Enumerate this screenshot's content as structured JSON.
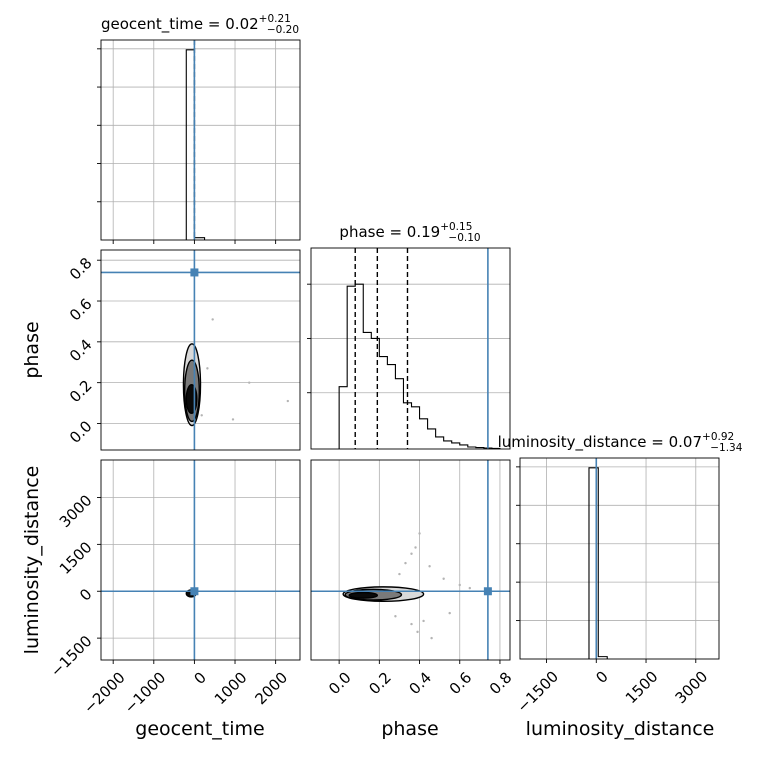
{
  "chart_data": {
    "type": "corner",
    "grid": true,
    "truth_color": "#4682b4",
    "truth": {
      "geocent_time": 0,
      "phase": 0.74,
      "luminosity_distance": 0
    },
    "panels": [
      {
        "id": "geocent_time_hist",
        "title": {
          "main": "geocent_time = 0.02",
          "sup": "+0.21",
          "sub": "−0.20"
        },
        "kind": "hist1d",
        "xlim": [
          -2300,
          2600
        ],
        "ylim": [
          0,
          1.02
        ],
        "xticks": [
          -2000,
          -1000,
          0,
          1000,
          2000
        ],
        "bins": [
          {
            "x0": -200,
            "x1": -20,
            "value": 0.97
          },
          {
            "x0": -20,
            "x1": 0,
            "value": 0.97
          },
          {
            "x0": 0,
            "x1": 250,
            "value": 0.012
          }
        ],
        "quantiles": [
          0.02
        ],
        "truth_x": 0
      },
      {
        "id": "phase_hist",
        "title": {
          "main": "phase = 0.19",
          "sup": "+0.15",
          "sub": "−0.10"
        },
        "kind": "hist1d",
        "xlim": [
          -0.14,
          0.85
        ],
        "ylim": [
          0,
          1.0
        ],
        "bins": [
          {
            "x0": 0.0,
            "x1": 0.04,
            "value": 0.31
          },
          {
            "x0": 0.04,
            "x1": 0.08,
            "value": 0.81
          },
          {
            "x0": 0.08,
            "x1": 0.12,
            "value": 0.82
          },
          {
            "x0": 0.12,
            "x1": 0.16,
            "value": 0.58
          },
          {
            "x0": 0.16,
            "x1": 0.2,
            "value": 0.55
          },
          {
            "x0": 0.2,
            "x1": 0.24,
            "value": 0.46
          },
          {
            "x0": 0.24,
            "x1": 0.28,
            "value": 0.42
          },
          {
            "x0": 0.28,
            "x1": 0.32,
            "value": 0.35
          },
          {
            "x0": 0.32,
            "x1": 0.36,
            "value": 0.23
          },
          {
            "x0": 0.36,
            "x1": 0.4,
            "value": 0.21
          },
          {
            "x0": 0.4,
            "x1": 0.44,
            "value": 0.15
          },
          {
            "x0": 0.44,
            "x1": 0.48,
            "value": 0.1
          },
          {
            "x0": 0.48,
            "x1": 0.52,
            "value": 0.06
          },
          {
            "x0": 0.52,
            "x1": 0.56,
            "value": 0.04
          },
          {
            "x0": 0.56,
            "x1": 0.6,
            "value": 0.03
          },
          {
            "x0": 0.6,
            "x1": 0.64,
            "value": 0.02
          },
          {
            "x0": 0.64,
            "x1": 0.68,
            "value": 0.01
          },
          {
            "x0": 0.68,
            "x1": 0.72,
            "value": 0.007
          },
          {
            "x0": 0.72,
            "x1": 0.76,
            "value": 0.005
          },
          {
            "x0": 0.76,
            "x1": 0.8,
            "value": 0.003
          }
        ],
        "quantiles": [
          0.08,
          0.19,
          0.34
        ],
        "truth_x": 0.74
      },
      {
        "id": "luminosity_distance_hist",
        "title": {
          "main": "luminosity_distance = 0.07",
          "sup": "+0.92",
          "sub": "−1.34"
        },
        "kind": "hist1d",
        "xlim": [
          -2300,
          3700
        ],
        "ylim": [
          0,
          1.02
        ],
        "xticks": [
          -1500,
          0,
          1500,
          3000
        ],
        "xticklabels": [
          "−1500",
          "0",
          "1500",
          "3000"
        ],
        "bins": [
          {
            "x0": -220,
            "x1": -20,
            "value": 0.97
          },
          {
            "x0": -20,
            "x1": 60,
            "value": 0.97
          },
          {
            "x0": 60,
            "x1": 330,
            "value": 0.012
          }
        ],
        "quantiles": [
          0.07
        ],
        "truth_x": 0
      },
      {
        "id": "phase_vs_geocent_time",
        "kind": "hist2d",
        "xlim": [
          -2300,
          2600
        ],
        "ylim": [
          -0.13,
          0.85
        ],
        "yticks": [
          0.0,
          0.2,
          0.4,
          0.6,
          0.8
        ],
        "yticklabels": [
          "0.0",
          "0.2",
          "0.4",
          "0.6",
          "0.8"
        ],
        "ylabel": "phase",
        "center": [
          -60,
          0.18
        ],
        "truth": [
          0,
          0.74
        ],
        "contours": [
          {
            "cx": -70,
            "cy": 0.12,
            "rx": 130,
            "ry": 0.07
          },
          {
            "cx": -60,
            "cy": 0.16,
            "rx": 180,
            "ry": 0.15
          },
          {
            "cx": -60,
            "cy": 0.19,
            "rx": 210,
            "ry": 0.2
          }
        ],
        "scatter": [
          {
            "x": 450,
            "y": 0.51
          },
          {
            "x": 1350,
            "y": 0.2
          },
          {
            "x": 950,
            "y": 0.02
          },
          {
            "x": 2300,
            "y": 0.11
          },
          {
            "x": 180,
            "y": 0.04
          },
          {
            "x": 320,
            "y": 0.27
          }
        ]
      },
      {
        "id": "luminosity_distance_vs_geocent_time",
        "kind": "hist2d",
        "xlim": [
          -2300,
          2600
        ],
        "ylim": [
          -2200,
          4200
        ],
        "xticks": [
          -2000,
          -1000,
          0,
          1000,
          2000
        ],
        "xticklabels": [
          "−2000",
          "−1000",
          "0",
          "1000",
          "2000"
        ],
        "yticks": [
          -1500,
          0,
          1500,
          3000
        ],
        "yticklabels": [
          "−1500",
          "0",
          "1500",
          "3000"
        ],
        "xlabel": "geocent_time",
        "ylabel": "luminosity_distance",
        "center": [
          -60,
          -60
        ],
        "truth": [
          0,
          0
        ],
        "contours": [
          {
            "cx": -80,
            "cy": -70,
            "rx": 120,
            "ry": 110
          }
        ],
        "scatter": []
      },
      {
        "id": "luminosity_distance_vs_phase",
        "kind": "hist2d",
        "xlim": [
          -0.14,
          0.85
        ],
        "ylim": [
          -2200,
          4200
        ],
        "xticks": [
          0.0,
          0.2,
          0.4,
          0.6,
          0.8
        ],
        "xticklabels": [
          "0.0",
          "0.2",
          "0.4",
          "0.6",
          "0.8"
        ],
        "xlabel": "phase",
        "center": [
          0.17,
          -120
        ],
        "truth": [
          0.74,
          0
        ],
        "contours": [
          {
            "cx": 0.12,
            "cy": -130,
            "rx": 0.07,
            "ry": 90
          },
          {
            "cx": 0.17,
            "cy": -110,
            "rx": 0.14,
            "ry": 170
          },
          {
            "cx": 0.22,
            "cy": -90,
            "rx": 0.2,
            "ry": 230
          }
        ],
        "scatter": [
          {
            "x": 0.36,
            "y": 1200
          },
          {
            "x": 0.38,
            "y": 1400
          },
          {
            "x": 0.4,
            "y": 1850
          },
          {
            "x": 0.45,
            "y": 800
          },
          {
            "x": 0.33,
            "y": 900
          },
          {
            "x": 0.3,
            "y": 550
          },
          {
            "x": 0.52,
            "y": 400
          },
          {
            "x": 0.42,
            "y": -950
          },
          {
            "x": 0.39,
            "y": -1300
          },
          {
            "x": 0.46,
            "y": -1500
          },
          {
            "x": 0.55,
            "y": -700
          },
          {
            "x": 0.28,
            "y": -800
          },
          {
            "x": 0.6,
            "y": 200
          },
          {
            "x": 0.65,
            "y": 100
          },
          {
            "x": 0.36,
            "y": -1050
          }
        ]
      }
    ]
  }
}
